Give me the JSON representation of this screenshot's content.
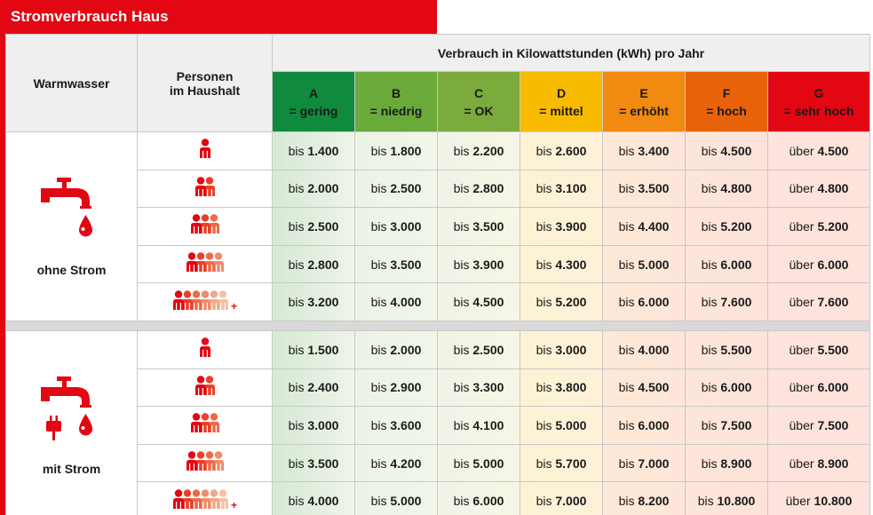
{
  "title": "Stromverbrauch Haus",
  "header": {
    "warmwasser": "Warmwasser",
    "personen_line1": "Personen",
    "personen_line2": "im Haushalt",
    "verbrauch": "Verbrauch in Kilowattstunden (kWh) pro Jahr"
  },
  "classes": [
    {
      "letter": "A",
      "label": "= gering",
      "color": "#108a3c"
    },
    {
      "letter": "B",
      "label": "= niedrig",
      "color": "#6aaa3a"
    },
    {
      "letter": "C",
      "label": "= OK",
      "color": "#7aab3c"
    },
    {
      "letter": "D",
      "label": "= mittel",
      "color": "#f8bb00"
    },
    {
      "letter": "E",
      "label": "= erhöht",
      "color": "#f08a10"
    },
    {
      "letter": "F",
      "label": "= hoch",
      "color": "#e8620a"
    },
    {
      "letter": "G",
      "label": "= sehr hoch",
      "color": "#e30613"
    }
  ],
  "groups": [
    {
      "label": "ohne Strom",
      "icon": "faucet-icon",
      "rows": [
        {
          "persons": 1,
          "plus": false,
          "values": [
            [
              "bis ",
              "1.400"
            ],
            [
              "bis ",
              "1.800"
            ],
            [
              "bis ",
              "2.200"
            ],
            [
              "bis ",
              "2.600"
            ],
            [
              "bis ",
              "3.400"
            ],
            [
              "bis ",
              "4.500"
            ],
            [
              "über ",
              "4.500"
            ]
          ]
        },
        {
          "persons": 2,
          "plus": false,
          "values": [
            [
              "bis ",
              "2.000"
            ],
            [
              "bis ",
              "2.500"
            ],
            [
              "bis ",
              "2.800"
            ],
            [
              "bis ",
              "3.100"
            ],
            [
              "bis ",
              "3.500"
            ],
            [
              "bis ",
              "4.800"
            ],
            [
              "über ",
              "4.800"
            ]
          ]
        },
        {
          "persons": 3,
          "plus": false,
          "values": [
            [
              "bis ",
              "2.500"
            ],
            [
              "bis ",
              "3.000"
            ],
            [
              "bis ",
              "3.500"
            ],
            [
              "bis ",
              "3.900"
            ],
            [
              "bis ",
              "4.400"
            ],
            [
              "bis ",
              "5.200"
            ],
            [
              "über ",
              "5.200"
            ]
          ]
        },
        {
          "persons": 4,
          "plus": false,
          "values": [
            [
              "bis ",
              "2.800"
            ],
            [
              "bis ",
              "3.500"
            ],
            [
              "bis ",
              "3.900"
            ],
            [
              "bis ",
              "4.300"
            ],
            [
              "bis ",
              "5.000"
            ],
            [
              "bis ",
              "6.000"
            ],
            [
              "über ",
              "6.000"
            ]
          ]
        },
        {
          "persons": 5,
          "plus": true,
          "values": [
            [
              "bis ",
              "3.200"
            ],
            [
              "bis ",
              "4.000"
            ],
            [
              "bis ",
              "4.500"
            ],
            [
              "bis ",
              "5.200"
            ],
            [
              "bis ",
              "6.000"
            ],
            [
              "bis ",
              "7.600"
            ],
            [
              "über ",
              "7.600"
            ]
          ]
        }
      ]
    },
    {
      "label": "mit Strom",
      "icon": "faucet-plug-icon",
      "rows": [
        {
          "persons": 1,
          "plus": false,
          "values": [
            [
              "bis ",
              "1.500"
            ],
            [
              "bis ",
              "2.000"
            ],
            [
              "bis ",
              "2.500"
            ],
            [
              "bis ",
              "3.000"
            ],
            [
              "bis ",
              "4.000"
            ],
            [
              "bis ",
              "5.500"
            ],
            [
              "über ",
              "5.500"
            ]
          ]
        },
        {
          "persons": 2,
          "plus": false,
          "values": [
            [
              "bis ",
              "2.400"
            ],
            [
              "bis ",
              "2.900"
            ],
            [
              "bis ",
              "3.300"
            ],
            [
              "bis ",
              "3.800"
            ],
            [
              "bis ",
              "4.500"
            ],
            [
              "bis ",
              "6.000"
            ],
            [
              "über ",
              "6.000"
            ]
          ]
        },
        {
          "persons": 3,
          "plus": false,
          "values": [
            [
              "bis ",
              "3.000"
            ],
            [
              "bis ",
              "3.600"
            ],
            [
              "bis ",
              "4.100"
            ],
            [
              "bis ",
              "5.000"
            ],
            [
              "bis ",
              "6.000"
            ],
            [
              "bis ",
              "7.500"
            ],
            [
              "über ",
              "7.500"
            ]
          ]
        },
        {
          "persons": 4,
          "plus": false,
          "values": [
            [
              "bis ",
              "3.500"
            ],
            [
              "bis ",
              "4.200"
            ],
            [
              "bis ",
              "5.000"
            ],
            [
              "bis ",
              "5.700"
            ],
            [
              "bis ",
              "7.000"
            ],
            [
              "bis ",
              "8.900"
            ],
            [
              "über ",
              "8.900"
            ]
          ]
        },
        {
          "persons": 5,
          "plus": true,
          "values": [
            [
              "bis ",
              "4.000"
            ],
            [
              "bis ",
              "5.000"
            ],
            [
              "bis ",
              "6.000"
            ],
            [
              "bis ",
              "7.000"
            ],
            [
              "bis ",
              "8.200"
            ],
            [
              "bis ",
              "10.800"
            ],
            [
              "über ",
              "10.800"
            ]
          ]
        }
      ]
    }
  ],
  "plus_sign": "+",
  "colors": {
    "brand_red": "#e30613",
    "person_fade": [
      "#e30613",
      "#e8412a",
      "#ec6a4a",
      "#ef8c6c",
      "#f2a88a",
      "#f5c0a6"
    ]
  }
}
